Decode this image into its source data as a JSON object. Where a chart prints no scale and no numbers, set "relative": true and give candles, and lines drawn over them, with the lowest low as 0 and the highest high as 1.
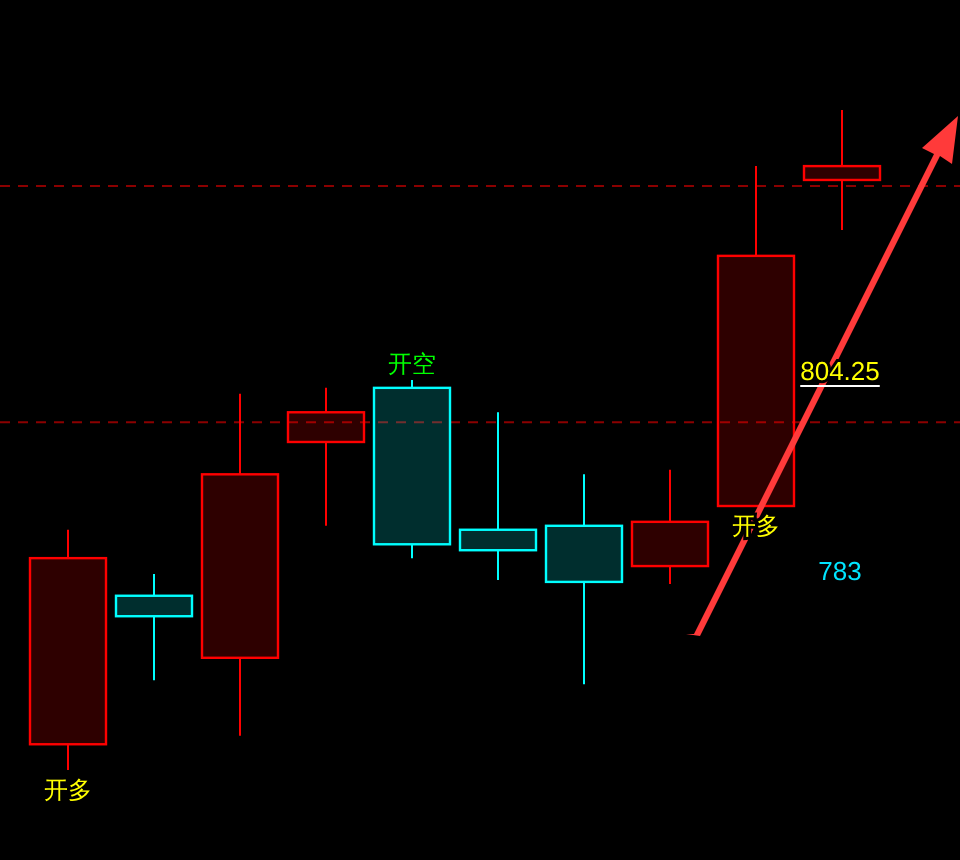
{
  "chart_data": {
    "type": "candlestick",
    "relative": true,
    "categories": [
      null,
      null,
      null,
      null,
      null,
      null,
      null,
      null,
      null,
      null
    ],
    "ohlc": [
      [
        0.039,
        0.364,
        0,
        0.321
      ],
      [
        0.264,
        0.297,
        0.136,
        0.233
      ],
      [
        0.17,
        0.57,
        0.052,
        0.448
      ],
      [
        0.497,
        0.579,
        0.37,
        0.542
      ],
      [
        0.579,
        0.591,
        0.321,
        0.342
      ],
      [
        0.364,
        0.542,
        0.288,
        0.333
      ],
      [
        0.37,
        0.448,
        0.13,
        0.285
      ],
      [
        0.309,
        0.455,
        0.282,
        0.376
      ],
      [
        0.4,
        0.915,
        0.4,
        0.779
      ],
      [
        0.894,
        1,
        0.818,
        0.915
      ]
    ],
    "colors": [
      "#ff0000",
      "#00ffff",
      "#ff0000",
      "#ff0000",
      "#00ffff",
      "#00ffff",
      "#00ffff",
      "#ff0000",
      "#ff0000",
      "#ff0000"
    ],
    "ref_lines": [
      {
        "axis": "y",
        "value": 0.885,
        "color": "#8b0000",
        "line_style": "dashed"
      },
      {
        "axis": "y",
        "value": 0.527,
        "color": "#8b0000",
        "line_style": "dashed"
      }
    ],
    "annotations": [
      {
        "text": "开多",
        "y": 0
      },
      {
        "text": "开空",
        "y": 0.591
      },
      {
        "text": "开多",
        "y": 0.4
      },
      "804.25",
      "783"
    ]
  }
}
